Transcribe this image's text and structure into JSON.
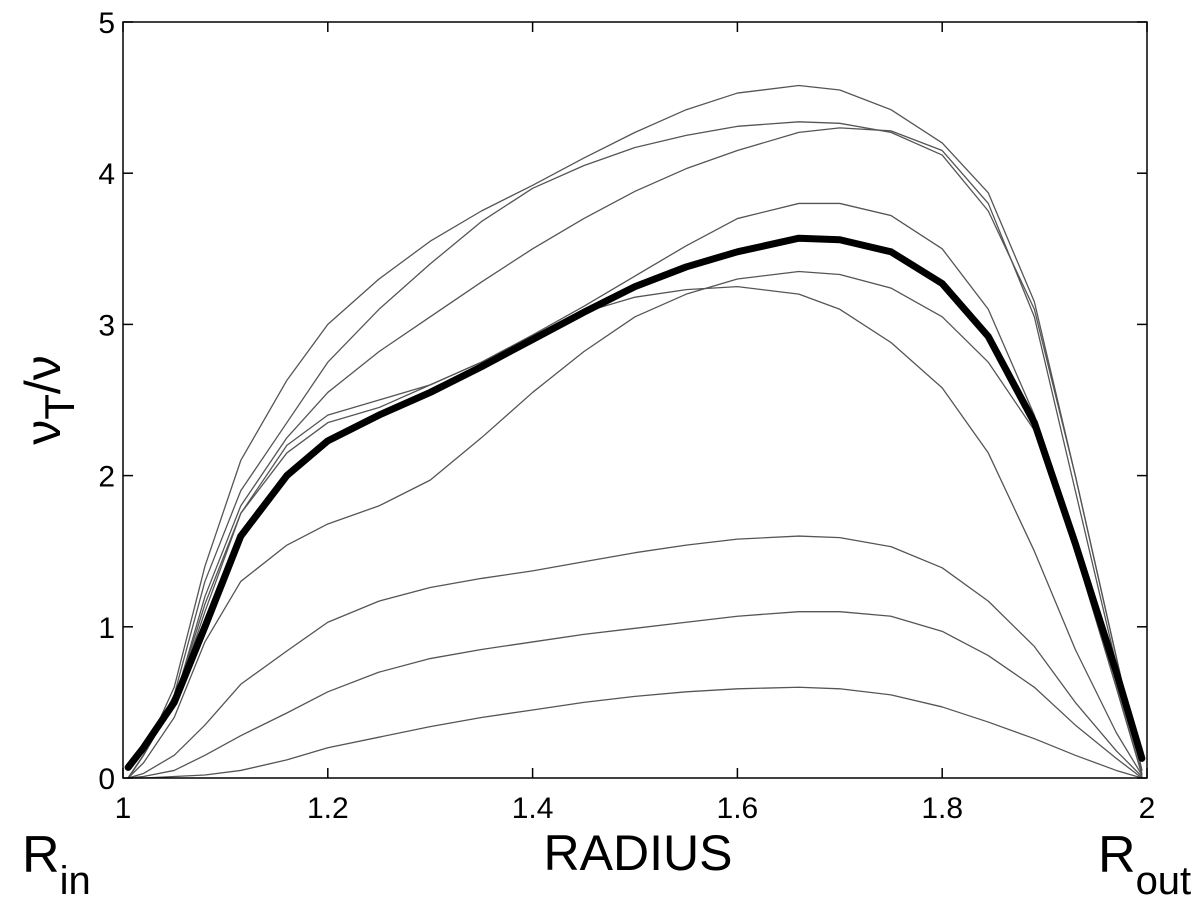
{
  "chart_data": {
    "type": "line",
    "xlabel": "RADIUS",
    "ylabel": [
      "ν",
      "T",
      "/ν"
    ],
    "annotations": [
      {
        "text": "R",
        "sub": "in"
      },
      {
        "text": "R",
        "sub": "out"
      }
    ],
    "x": [
      1.005,
      1.02,
      1.05,
      1.08,
      1.115,
      1.16,
      1.2,
      1.25,
      1.3,
      1.35,
      1.4,
      1.45,
      1.5,
      1.55,
      1.6,
      1.66,
      1.7,
      1.75,
      1.8,
      1.845,
      1.89,
      1.93,
      1.97,
      1.995
    ],
    "xlim": [
      1,
      2
    ],
    "xticks": [
      1,
      1.2,
      1.4,
      1.6,
      1.8,
      2
    ],
    "ylim": [
      0,
      5
    ],
    "yticks": [
      0,
      1,
      2,
      3,
      4,
      5
    ],
    "grid": false,
    "series": [
      {
        "color": "#555555",
        "linewidth": 1.3,
        "values": [
          0,
          0.15,
          0.6,
          1.4,
          2.1,
          2.63,
          3.0,
          3.3,
          3.55,
          3.75,
          3.92,
          4.1,
          4.27,
          4.42,
          4.53,
          4.58,
          4.55,
          4.42,
          4.2,
          3.87,
          3.15,
          2.0,
          0.8,
          0.05
        ]
      },
      {
        "color": "#555555",
        "linewidth": 1.3,
        "values": [
          0,
          0.15,
          0.55,
          1.3,
          1.9,
          2.35,
          2.75,
          3.1,
          3.4,
          3.68,
          3.9,
          4.05,
          4.17,
          4.25,
          4.31,
          4.34,
          4.33,
          4.27,
          4.12,
          3.75,
          3.1,
          2.0,
          0.8,
          0.05
        ]
      },
      {
        "color": "#555555",
        "linewidth": 1.3,
        "values": [
          0,
          0.15,
          0.5,
          1.2,
          1.8,
          2.25,
          2.55,
          2.82,
          3.05,
          3.28,
          3.5,
          3.7,
          3.88,
          4.03,
          4.15,
          4.27,
          4.3,
          4.28,
          4.15,
          3.8,
          3.05,
          1.9,
          0.75,
          0.05
        ]
      },
      {
        "color": "#555555",
        "linewidth": 1.3,
        "values": [
          0,
          0.15,
          0.5,
          1.15,
          1.75,
          2.15,
          2.35,
          2.45,
          2.6,
          2.75,
          2.93,
          3.12,
          3.32,
          3.52,
          3.7,
          3.8,
          3.8,
          3.72,
          3.5,
          3.1,
          2.4,
          1.5,
          0.6,
          0.03
        ]
      },
      {
        "color": "#555555",
        "linewidth": 1.3,
        "values": [
          0,
          0.15,
          0.5,
          1.1,
          1.75,
          2.2,
          2.4,
          2.5,
          2.6,
          2.75,
          2.92,
          3.08,
          3.18,
          3.23,
          3.25,
          3.2,
          3.1,
          2.88,
          2.58,
          2.15,
          1.5,
          0.85,
          0.3,
          0.02
        ]
      },
      {
        "color": "#555555",
        "linewidth": 1.3,
        "values": [
          0,
          0.1,
          0.4,
          0.9,
          1.3,
          1.54,
          1.68,
          1.8,
          1.97,
          2.25,
          2.55,
          2.82,
          3.05,
          3.2,
          3.3,
          3.35,
          3.33,
          3.24,
          3.05,
          2.75,
          2.3,
          1.5,
          0.6,
          0.02
        ]
      },
      {
        "color": "#555555",
        "linewidth": 1.3,
        "values": [
          0,
          0.03,
          0.15,
          0.35,
          0.62,
          0.84,
          1.03,
          1.17,
          1.26,
          1.32,
          1.37,
          1.43,
          1.49,
          1.54,
          1.58,
          1.6,
          1.59,
          1.53,
          1.39,
          1.17,
          0.87,
          0.5,
          0.18,
          0.01
        ]
      },
      {
        "color": "#555555",
        "linewidth": 1.3,
        "values": [
          0,
          0.01,
          0.05,
          0.15,
          0.28,
          0.43,
          0.57,
          0.7,
          0.79,
          0.85,
          0.9,
          0.95,
          0.99,
          1.03,
          1.07,
          1.1,
          1.1,
          1.07,
          0.97,
          0.81,
          0.6,
          0.35,
          0.13,
          0
        ]
      },
      {
        "color": "#555555",
        "linewidth": 1.3,
        "values": [
          0,
          0,
          0.01,
          0.02,
          0.05,
          0.12,
          0.2,
          0.27,
          0.34,
          0.4,
          0.45,
          0.5,
          0.54,
          0.57,
          0.59,
          0.6,
          0.59,
          0.55,
          0.47,
          0.37,
          0.26,
          0.15,
          0.05,
          0
        ]
      },
      {
        "color": "#000000",
        "linewidth": 7,
        "values": [
          0.07,
          0.2,
          0.5,
          1.0,
          1.6,
          2.0,
          2.23,
          2.4,
          2.55,
          2.72,
          2.9,
          3.08,
          3.25,
          3.38,
          3.48,
          3.57,
          3.56,
          3.48,
          3.27,
          2.92,
          2.35,
          1.55,
          0.7,
          0.13
        ]
      }
    ]
  }
}
